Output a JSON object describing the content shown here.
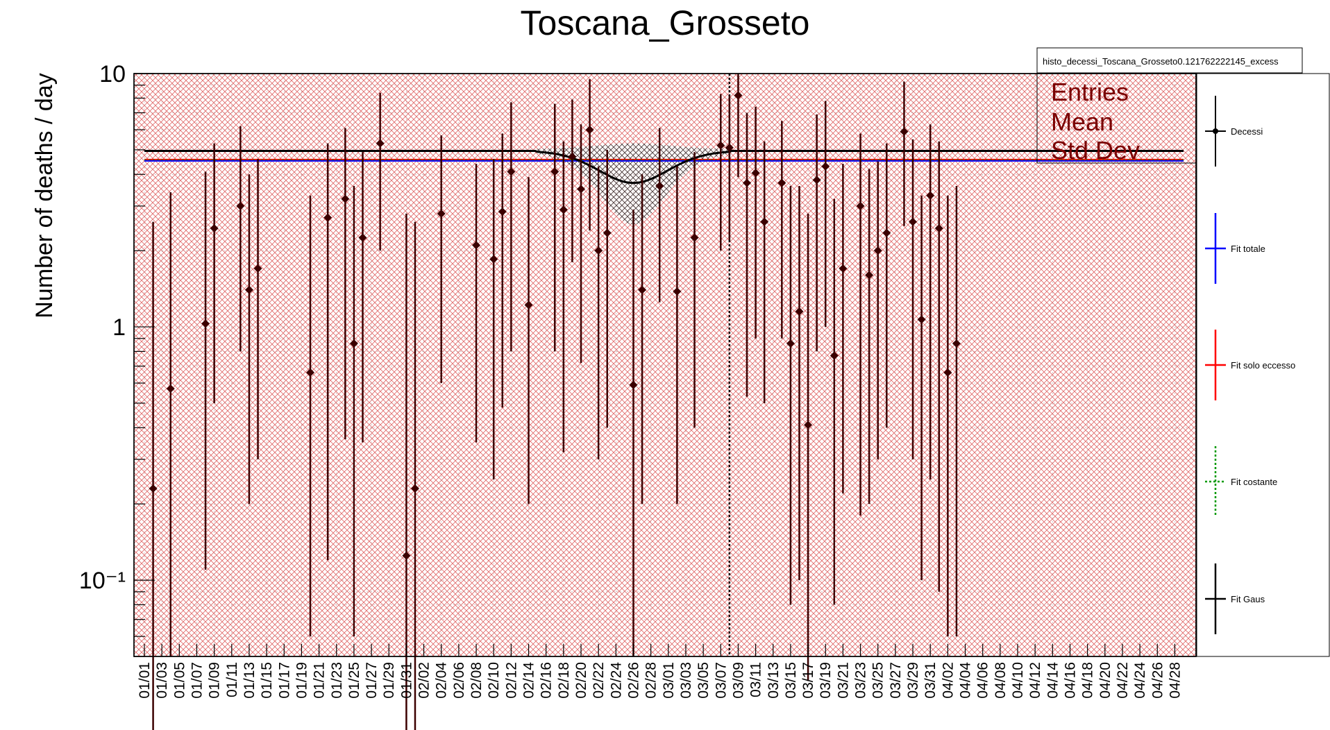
{
  "chart_data": {
    "type": "scatter",
    "title": "Toscana_Grosseto",
    "xlabel": "",
    "ylabel": "Number of deaths / day",
    "y_scale": "log",
    "ylim": [
      0.05,
      10
    ],
    "y_ticks": [
      {
        "value": 10,
        "label": "10"
      },
      {
        "value": 1,
        "label": "1"
      },
      {
        "value": 0.1,
        "label": "10⁻¹"
      }
    ],
    "x_tick_labels": [
      "01/01",
      "01/03",
      "01/05",
      "01/07",
      "01/09",
      "01/11",
      "01/13",
      "01/15",
      "01/17",
      "01/19",
      "01/21",
      "01/23",
      "01/25",
      "01/27",
      "01/29",
      "01/31",
      "02/02",
      "02/04",
      "02/06",
      "02/08",
      "02/10",
      "02/12",
      "02/14",
      "02/16",
      "02/18",
      "02/20",
      "02/22",
      "02/24",
      "02/26",
      "02/28",
      "03/01",
      "03/03",
      "03/05",
      "03/07",
      "03/09",
      "03/11",
      "03/13",
      "03/15",
      "03/17",
      "03/19",
      "03/21",
      "03/23",
      "03/25",
      "03/27",
      "03/29",
      "03/31",
      "04/02",
      "04/04",
      "04/06",
      "04/08",
      "04/10",
      "04/12",
      "04/14",
      "04/16",
      "04/18",
      "04/20",
      "04/22",
      "04/24",
      "04/26",
      "04/28"
    ],
    "grid": true,
    "legend_position": "right",
    "series": [
      {
        "name": "Decessi",
        "style": "points-with-error-bars",
        "color": "#3b0000",
        "points": [
          {
            "x": "01/02",
            "y": 0.23,
            "ylo": 0.02,
            "yhi": 2.6
          },
          {
            "x": "01/04",
            "y": 0.57,
            "ylo": 0.05,
            "yhi": 3.4
          },
          {
            "x": "01/08",
            "y": 1.03,
            "ylo": 0.11,
            "yhi": 4.1
          },
          {
            "x": "01/09",
            "y": 2.45,
            "ylo": 0.5,
            "yhi": 5.3
          },
          {
            "x": "01/12",
            "y": 3.0,
            "ylo": 0.8,
            "yhi": 6.2
          },
          {
            "x": "01/13",
            "y": 1.4,
            "ylo": 0.2,
            "yhi": 4.0
          },
          {
            "x": "01/14",
            "y": 1.7,
            "ylo": 0.3,
            "yhi": 4.6
          },
          {
            "x": "01/20",
            "y": 0.66,
            "ylo": 0.06,
            "yhi": 3.3
          },
          {
            "x": "01/22",
            "y": 2.7,
            "ylo": 0.12,
            "yhi": 5.3
          },
          {
            "x": "01/24",
            "y": 3.2,
            "ylo": 0.36,
            "yhi": 6.1
          },
          {
            "x": "01/25",
            "y": 0.86,
            "ylo": 0.06,
            "yhi": 3.6
          },
          {
            "x": "01/26",
            "y": 2.25,
            "ylo": 0.35,
            "yhi": 4.9
          },
          {
            "x": "01/28",
            "y": 5.3,
            "ylo": 2.0,
            "yhi": 8.4
          },
          {
            "x": "01/31",
            "y": 0.125,
            "ylo": 0.02,
            "yhi": 2.8
          },
          {
            "x": "02/01",
            "y": 0.23,
            "ylo": 0.02,
            "yhi": 2.6
          },
          {
            "x": "02/04",
            "y": 2.8,
            "ylo": 0.6,
            "yhi": 5.7
          },
          {
            "x": "02/08",
            "y": 2.1,
            "ylo": 0.35,
            "yhi": 4.4
          },
          {
            "x": "02/10",
            "y": 1.85,
            "ylo": 0.25,
            "yhi": 4.6
          },
          {
            "x": "02/11",
            "y": 2.85,
            "ylo": 0.48,
            "yhi": 5.8
          },
          {
            "x": "02/12",
            "y": 4.1,
            "ylo": 0.8,
            "yhi": 7.7
          },
          {
            "x": "02/14",
            "y": 1.22,
            "ylo": 0.2,
            "yhi": 3.9
          },
          {
            "x": "02/17",
            "y": 4.1,
            "ylo": 0.8,
            "yhi": 7.6
          },
          {
            "x": "02/18",
            "y": 2.9,
            "ylo": 0.32,
            "yhi": 5.4
          },
          {
            "x": "02/19",
            "y": 4.7,
            "ylo": 1.8,
            "yhi": 7.9
          },
          {
            "x": "02/20",
            "y": 3.5,
            "ylo": 0.72,
            "yhi": 6.3
          },
          {
            "x": "02/21",
            "y": 6.0,
            "ylo": 2.4,
            "yhi": 9.5
          },
          {
            "x": "02/22",
            "y": 2.0,
            "ylo": 0.3,
            "yhi": 4.3
          },
          {
            "x": "02/23",
            "y": 2.35,
            "ylo": 0.4,
            "yhi": 5.0
          },
          {
            "x": "02/26",
            "y": 0.59,
            "ylo": 0.05,
            "yhi": 2.9
          },
          {
            "x": "02/27",
            "y": 1.4,
            "ylo": 0.2,
            "yhi": 4.0
          },
          {
            "x": "02/29",
            "y": 3.6,
            "ylo": 1.25,
            "yhi": 6.1
          },
          {
            "x": "03/02",
            "y": 1.38,
            "ylo": 0.2,
            "yhi": 4.3
          },
          {
            "x": "03/04",
            "y": 2.25,
            "ylo": 0.4,
            "yhi": 4.9
          },
          {
            "x": "03/07",
            "y": 5.2,
            "ylo": 2.0,
            "yhi": 8.3
          },
          {
            "x": "03/08",
            "y": 5.1,
            "ylo": 2.2,
            "yhi": 8.2
          },
          {
            "x": "03/09",
            "y": 8.2,
            "ylo": 3.9,
            "yhi": 10.0
          },
          {
            "x": "03/10",
            "y": 3.7,
            "ylo": 0.53,
            "yhi": 7.0
          },
          {
            "x": "03/11",
            "y": 4.05,
            "ylo": 0.9,
            "yhi": 7.4
          },
          {
            "x": "03/12",
            "y": 2.6,
            "ylo": 0.5,
            "yhi": 5.4
          },
          {
            "x": "03/14",
            "y": 3.7,
            "ylo": 0.9,
            "yhi": 6.5
          },
          {
            "x": "03/15",
            "y": 0.86,
            "ylo": 0.08,
            "yhi": 3.6
          },
          {
            "x": "03/16",
            "y": 1.15,
            "ylo": 0.1,
            "yhi": 3.6
          },
          {
            "x": "03/17",
            "y": 0.41,
            "ylo": 0.04,
            "yhi": 2.8
          },
          {
            "x": "03/18",
            "y": 3.8,
            "ylo": 0.8,
            "yhi": 6.9
          },
          {
            "x": "03/19",
            "y": 4.3,
            "ylo": 1.0,
            "yhi": 7.8
          },
          {
            "x": "03/20",
            "y": 0.77,
            "ylo": 0.08,
            "yhi": 3.2
          },
          {
            "x": "03/21",
            "y": 1.7,
            "ylo": 0.22,
            "yhi": 4.4
          },
          {
            "x": "03/23",
            "y": 3.0,
            "ylo": 0.18,
            "yhi": 5.8
          },
          {
            "x": "03/24",
            "y": 1.6,
            "ylo": 0.2,
            "yhi": 4.2
          },
          {
            "x": "03/25",
            "y": 2.0,
            "ylo": 0.3,
            "yhi": 4.5
          },
          {
            "x": "03/26",
            "y": 2.35,
            "ylo": 0.4,
            "yhi": 5.3
          },
          {
            "x": "03/28",
            "y": 5.9,
            "ylo": 2.5,
            "yhi": 9.3
          },
          {
            "x": "03/29",
            "y": 2.6,
            "ylo": 0.3,
            "yhi": 5.5
          },
          {
            "x": "03/30",
            "y": 1.07,
            "ylo": 0.1,
            "yhi": 3.3
          },
          {
            "x": "03/31",
            "y": 3.3,
            "ylo": 0.25,
            "yhi": 6.3
          },
          {
            "x": "04/01",
            "y": 2.45,
            "ylo": 0.09,
            "yhi": 5.4
          },
          {
            "x": "04/02",
            "y": 0.66,
            "ylo": 0.06,
            "yhi": 3.3
          },
          {
            "x": "04/03",
            "y": 0.86,
            "ylo": 0.06,
            "yhi": 3.6
          }
        ]
      },
      {
        "name": "Fit totale",
        "color": "#0000ff",
        "style": "line"
      },
      {
        "name": "Fit solo eccesso",
        "color": "#ff0000",
        "style": "line"
      },
      {
        "name": "Fit costante",
        "color": "#009900",
        "style": "dotted-line"
      },
      {
        "name": "Fit Gaus",
        "color": "#000000",
        "style": "line"
      }
    ],
    "fit_lines": {
      "constant_level": 4.55,
      "gaus_baseline": 4.95,
      "gaus_min": 3.7,
      "gaus_center": "02/26",
      "vertical_marker": "03/08"
    },
    "stats_box": {
      "title": "histo_decessi_Toscana_Grosseto0.121762222145_excess",
      "rows": [
        "Entries",
        "Mean",
        "Std Dev"
      ]
    },
    "colors": {
      "hatch": "#e06666",
      "points": "#3b0000",
      "stats_text": "#7a0000"
    }
  }
}
